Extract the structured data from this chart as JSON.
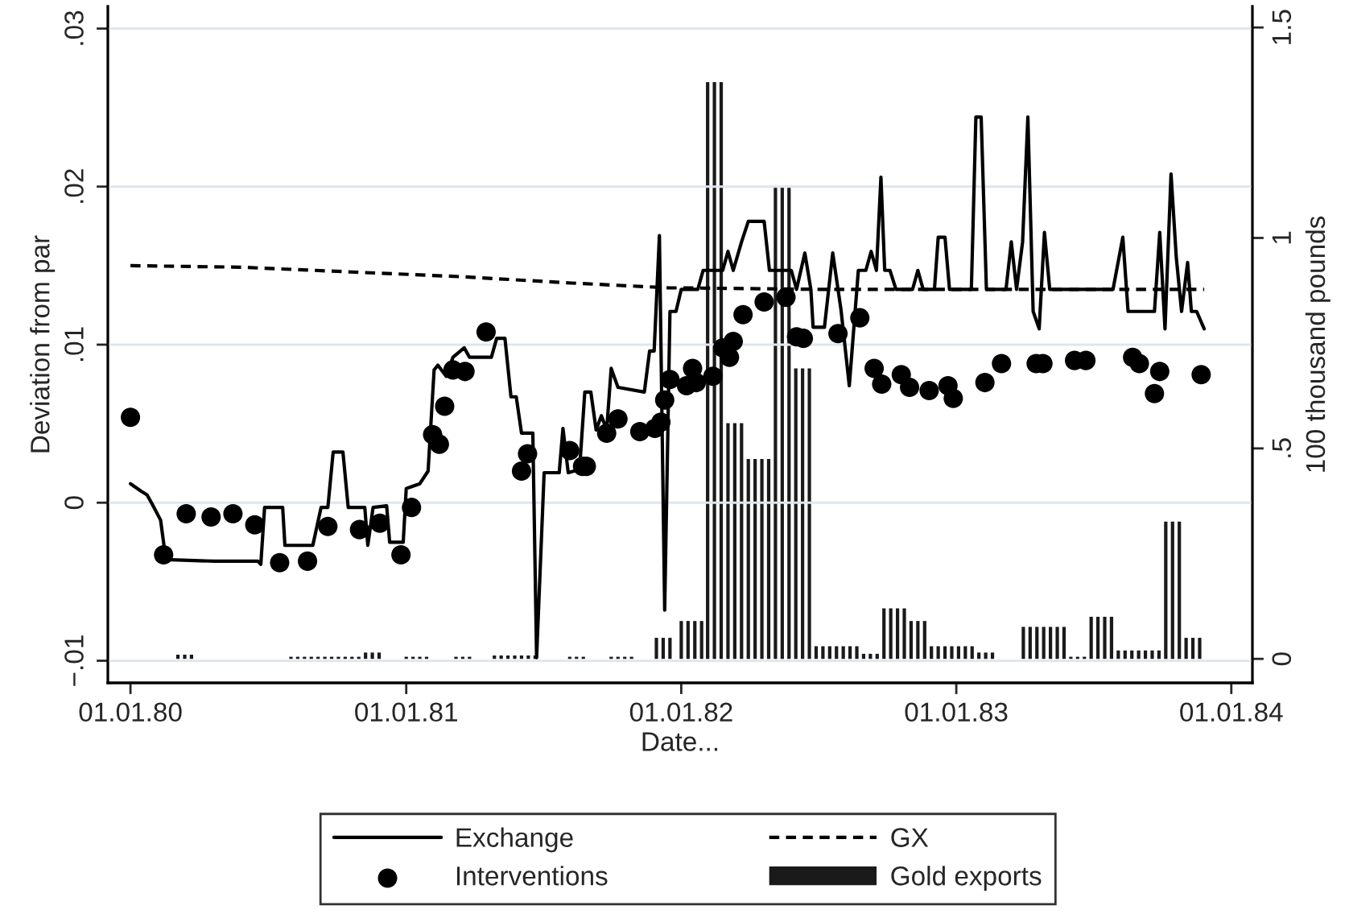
{
  "chart_data": {
    "type": "line",
    "xlabel": "Date...",
    "ylabel": "Deviation from par",
    "y2label": "100 thousand pounds",
    "xlim": [
      "1879-12-02",
      "1884-01-29"
    ],
    "xticks": [
      {
        "value": "1880-01-01",
        "label": "01.01.80"
      },
      {
        "value": "1881-01-01",
        "label": "01.01.81"
      },
      {
        "value": "1882-01-01",
        "label": "01.01.82"
      },
      {
        "value": "1883-01-01",
        "label": "01.01.83"
      },
      {
        "value": "1884-01-01",
        "label": "01.01.84"
      }
    ],
    "ylim": [
      -0.0114,
      0.0314
    ],
    "yticks": [
      {
        "value": -0.01,
        "label": "−.01"
      },
      0,
      {
        "value": 0.01,
        "label": ".01"
      },
      {
        "value": 0.02,
        "label": ".02"
      },
      {
        "value": 0.03,
        "label": ".03"
      }
    ],
    "y2lim": [
      -0.057,
      1.55
    ],
    "y2ticks": [
      0,
      {
        "value": 0.5,
        "label": ".5"
      },
      1,
      {
        "value": 1.5,
        "label": "1.5"
      }
    ],
    "grid": "y",
    "legend": "bottom",
    "series": [
      {
        "name": "Exchange",
        "line_style": "solid",
        "color": "#000000",
        "x": [
          "1880-01-01",
          "1880-01-16",
          "1880-01-23",
          "1880-01-30",
          "1880-02-10",
          "1880-02-17",
          "1880-04-21",
          "1880-06-18",
          "1880-06-22",
          "1880-06-27",
          "1880-07-21",
          "1880-07-24",
          "1880-08-30",
          "1880-09-10",
          "1880-09-19",
          "1880-09-26",
          "1880-10-09",
          "1880-10-16",
          "1880-11-07",
          "1880-11-11",
          "1880-11-18",
          "1880-12-06",
          "1880-12-10",
          "1880-12-28",
          "1881-01-01",
          "1881-01-19",
          "1881-01-30",
          "1881-02-07",
          "1881-02-12",
          "1881-02-23",
          "1881-03-04",
          "1881-03-19",
          "1881-03-26",
          "1881-04-24",
          "1881-05-01",
          "1881-05-12",
          "1881-05-20",
          "1881-05-27",
          "1881-06-03",
          "1881-06-18",
          "1881-06-23",
          "1881-07-03",
          "1881-07-23",
          "1881-07-28",
          "1881-08-04",
          "1881-08-19",
          "1881-08-26",
          "1881-09-03",
          "1881-09-10",
          "1881-09-17",
          "1881-09-24",
          "1881-09-30",
          "1881-10-09",
          "1881-11-13",
          "1881-11-20",
          "1881-11-26",
          "1881-12-03",
          "1881-12-10",
          "1881-12-17",
          "1881-12-25",
          "1882-01-01",
          "1882-01-23",
          "1882-01-30",
          "1882-02-25",
          "1882-03-04",
          "1882-03-11",
          "1882-03-22",
          "1882-03-31",
          "1882-04-21",
          "1882-04-28",
          "1882-05-27",
          "1882-06-03",
          "1882-06-14",
          "1882-06-22",
          "1882-06-25",
          "1882-07-10",
          "1882-07-21",
          "1882-08-01",
          "1882-08-12",
          "1882-08-24",
          "1882-09-03",
          "1882-09-10",
          "1882-09-17",
          "1882-09-23",
          "1882-09-28",
          "1882-10-05",
          "1882-10-13",
          "1882-11-04",
          "1882-11-11",
          "1882-11-18",
          "1882-12-03",
          "1882-12-08",
          "1882-12-17",
          "1882-12-23",
          "1883-01-21",
          "1883-01-27",
          "1883-02-03",
          "1883-02-10",
          "1883-03-08",
          "1883-03-15",
          "1883-03-22",
          "1883-03-30",
          "1883-04-06",
          "1883-04-13",
          "1883-04-21",
          "1883-04-28",
          "1883-05-05",
          "1883-07-28",
          "1883-08-10",
          "1883-08-17",
          "1883-09-21",
          "1883-09-28",
          "1883-10-05",
          "1883-10-13",
          "1883-10-20",
          "1883-10-27",
          "1883-11-04",
          "1883-11-09",
          "1883-11-16",
          "1883-11-26"
        ],
        "values": [
          0.0012,
          0.0007,
          0.0005,
          -0.0001,
          -0.0011,
          -0.0036,
          -0.0037,
          -0.0037,
          -0.0039,
          -0.0003,
          -0.0003,
          -0.0027,
          -0.0027,
          -0.0003,
          -0.0003,
          0.0032,
          0.0032,
          -0.0003,
          -0.0003,
          -0.0027,
          -0.0003,
          -0.0002,
          -0.0025,
          -0.0025,
          0.0009,
          0.0012,
          0.002,
          0.0084,
          0.0087,
          0.008,
          0.0092,
          0.0098,
          0.0092,
          0.0092,
          0.0104,
          0.0104,
          0.0067,
          0.0067,
          0.0044,
          0.0044,
          -0.0098,
          0.0019,
          0.0019,
          0.0047,
          0.0019,
          0.0021,
          0.007,
          0.007,
          0.0046,
          0.0055,
          0.0046,
          0.0085,
          0.0073,
          0.007,
          0.0096,
          0.0096,
          0.0169,
          -0.0068,
          0.0121,
          0.0121,
          0.0135,
          0.0135,
          0.0147,
          0.0147,
          0.0159,
          0.0147,
          0.0165,
          0.0178,
          0.0178,
          0.0147,
          0.0147,
          0.0135,
          0.0158,
          0.0135,
          0.0111,
          0.0111,
          0.0158,
          0.0122,
          0.0074,
          0.0147,
          0.0147,
          0.0159,
          0.0147,
          0.0206,
          0.0147,
          0.0147,
          0.0135,
          0.0135,
          0.0147,
          0.0135,
          0.0135,
          0.0168,
          0.0168,
          0.0135,
          0.0135,
          0.0244,
          0.0244,
          0.0135,
          0.0135,
          0.0165,
          0.0135,
          0.0165,
          0.0244,
          0.0121,
          0.011,
          0.0171,
          0.0135,
          0.0135,
          0.0168,
          0.0121,
          0.0121,
          0.0171,
          0.011,
          0.0208,
          0.0155,
          0.0121,
          0.0152,
          0.0121,
          0.0121,
          0.011
        ]
      },
      {
        "name": "Interventions",
        "type": "scatter",
        "marker": "circle",
        "color": "#000000",
        "x": [
          "1880-01-01",
          "1880-02-14",
          "1880-03-15",
          "1880-04-17",
          "1880-05-16",
          "1880-06-14",
          "1880-07-17",
          "1880-08-23",
          "1880-09-19",
          "1880-10-31",
          "1880-11-27",
          "1880-12-25",
          "1881-01-08",
          "1881-02-05",
          "1881-02-14",
          "1881-02-21",
          "1881-03-04",
          "1881-03-20",
          "1881-04-17",
          "1881-06-03",
          "1881-06-11",
          "1881-08-06",
          "1881-08-23",
          "1881-08-28",
          "1881-09-24",
          "1881-10-09",
          "1881-11-07",
          "1881-11-27",
          "1881-12-05",
          "1881-12-10",
          "1881-12-17",
          "1882-01-08",
          "1882-01-16",
          "1882-01-21",
          "1882-02-12",
          "1882-02-25",
          "1882-03-06",
          "1882-03-11",
          "1882-03-24",
          "1882-04-21",
          "1882-05-20",
          "1882-06-03",
          "1882-06-12",
          "1882-07-28",
          "1882-08-26",
          "1882-09-14",
          "1882-09-24",
          "1882-10-20",
          "1882-10-31",
          "1882-11-26",
          "1882-12-21",
          "1882-12-28",
          "1883-02-08",
          "1883-03-02",
          "1883-04-17",
          "1883-04-26",
          "1883-06-07",
          "1883-06-22",
          "1883-08-23",
          "1883-09-01",
          "1883-09-21",
          "1883-09-28",
          "1883-11-22"
        ],
        "values": [
          0.0054,
          -0.0033,
          -0.0007,
          -0.0009,
          -0.0007,
          -0.0014,
          -0.0038,
          -0.0037,
          -0.0015,
          -0.0017,
          -0.0013,
          -0.0033,
          -0.0003,
          0.0043,
          0.0037,
          0.0061,
          0.0084,
          0.0083,
          0.0108,
          0.002,
          0.0031,
          0.0033,
          0.0023,
          0.0023,
          0.0044,
          0.0053,
          0.0045,
          0.0047,
          0.0051,
          0.0065,
          0.0078,
          0.0074,
          0.0085,
          0.0076,
          0.008,
          0.0098,
          0.0092,
          0.0102,
          0.0119,
          0.0127,
          0.013,
          0.0105,
          0.0104,
          0.0107,
          0.0117,
          0.0085,
          0.0075,
          0.0081,
          0.0073,
          0.0071,
          0.0074,
          0.0066,
          0.0076,
          0.0088,
          0.0088,
          0.0088,
          0.009,
          0.009,
          0.0092,
          0.0088,
          0.0069,
          0.0083,
          0.0081
        ]
      },
      {
        "name": "GX",
        "line_style": "dashed",
        "color": "#000000",
        "x": [
          "1880-01-01",
          "1880-05-27",
          "1880-10-20",
          "1881-03-15",
          "1881-08-08",
          "1881-12-14",
          "1882-07-03",
          "1883-11-26"
        ],
        "values": [
          0.015,
          0.0149,
          0.0146,
          0.0143,
          0.0139,
          0.0136,
          0.0135,
          0.0135
        ]
      },
      {
        "name": "Gold exports",
        "type": "bar",
        "axis": "y2",
        "color": "#1a1a1a",
        "x": [
          "1880-03-04",
          "1880-03-13",
          "1880-03-22",
          "1880-08-01",
          "1880-08-10",
          "1880-08-19",
          "1880-08-28",
          "1880-09-06",
          "1880-09-15",
          "1880-09-24",
          "1880-10-03",
          "1880-10-12",
          "1880-10-21",
          "1880-10-30",
          "1880-11-08",
          "1880-11-17",
          "1880-11-26",
          "1881-01-01",
          "1881-01-10",
          "1881-01-19",
          "1881-01-28",
          "1881-03-08",
          "1881-03-17",
          "1881-03-26",
          "1881-04-28",
          "1881-05-07",
          "1881-05-16",
          "1881-05-25",
          "1881-06-03",
          "1881-06-12",
          "1881-06-21",
          "1881-08-06",
          "1881-08-15",
          "1881-08-24",
          "1881-09-30",
          "1881-10-09",
          "1881-10-18",
          "1881-10-27",
          "1881-11-29",
          "1881-12-08",
          "1881-12-17",
          "1882-01-01",
          "1882-01-10",
          "1882-01-19",
          "1882-01-28",
          "1882-02-05",
          "1882-02-14",
          "1882-02-23",
          "1882-03-04",
          "1882-03-13",
          "1882-03-22",
          "1882-03-31",
          "1882-04-09",
          "1882-04-18",
          "1882-04-27",
          "1882-05-06",
          "1882-05-15",
          "1882-05-24",
          "1882-06-02",
          "1882-06-11",
          "1882-06-20",
          "1882-06-29",
          "1882-07-08",
          "1882-07-17",
          "1882-07-26",
          "1882-08-04",
          "1882-08-13",
          "1882-08-22",
          "1882-08-31",
          "1882-09-09",
          "1882-09-18",
          "1882-09-27",
          "1882-10-06",
          "1882-10-15",
          "1882-10-24",
          "1882-11-02",
          "1882-11-11",
          "1882-11-20",
          "1882-11-29",
          "1882-12-08",
          "1882-12-17",
          "1882-12-26",
          "1883-01-04",
          "1883-01-13",
          "1883-01-22",
          "1883-01-31",
          "1883-02-09",
          "1883-02-18",
          "1883-03-31",
          "1883-04-09",
          "1883-04-18",
          "1883-04-27",
          "1883-05-06",
          "1883-05-15",
          "1883-05-24",
          "1883-06-02",
          "1883-06-11",
          "1883-06-20",
          "1883-06-29",
          "1883-07-08",
          "1883-07-17",
          "1883-07-26",
          "1883-08-04",
          "1883-08-13",
          "1883-08-22",
          "1883-08-31",
          "1883-09-09",
          "1883-09-18",
          "1883-09-27",
          "1883-10-06",
          "1883-10-15",
          "1883-10-24",
          "1883-11-02",
          "1883-11-11",
          "1883-11-20"
        ],
        "values": [
          0.01,
          0.01,
          0.01,
          0.005,
          0.005,
          0.005,
          0.005,
          0.005,
          0.005,
          0.005,
          0.005,
          0.005,
          0.005,
          0.005,
          0.015,
          0.015,
          0.015,
          0.005,
          0.005,
          0.005,
          0.005,
          0.005,
          0.005,
          0.005,
          0.008,
          0.008,
          0.008,
          0.008,
          0.008,
          0.008,
          0.008,
          0.005,
          0.005,
          0.005,
          0.005,
          0.005,
          0.005,
          0.005,
          0.05,
          0.05,
          0.05,
          0.09,
          0.09,
          0.09,
          0.09,
          1.37,
          1.37,
          1.37,
          0.56,
          0.56,
          0.56,
          0.475,
          0.475,
          0.475,
          0.475,
          1.12,
          1.12,
          1.12,
          0.69,
          0.69,
          0.69,
          0.03,
          0.03,
          0.03,
          0.03,
          0.03,
          0.03,
          0.03,
          0.012,
          0.012,
          0.012,
          0.12,
          0.12,
          0.12,
          0.12,
          0.09,
          0.09,
          0.09,
          0.03,
          0.03,
          0.03,
          0.03,
          0.03,
          0.03,
          0.03,
          0.015,
          0.015,
          0.015,
          0.076,
          0.076,
          0.076,
          0.076,
          0.076,
          0.076,
          0.076,
          0.005,
          0.005,
          0.005,
          0.1,
          0.1,
          0.1,
          0.1,
          0.02,
          0.02,
          0.02,
          0.02,
          0.02,
          0.02,
          0.02,
          0.326,
          0.326,
          0.326,
          0.05,
          0.05,
          0.05
        ]
      }
    ]
  }
}
